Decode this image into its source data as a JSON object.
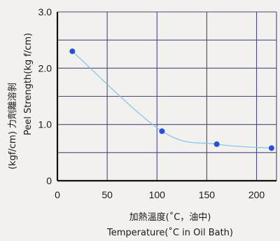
{
  "chart_data": {
    "type": "scatter",
    "xlabel": "加熱溫度(˚C，油中)",
    "xlabel_en": "Temperature(˚C in Oil Bath)",
    "ylabel": "(kgf/cm) 力劑離溶剝",
    "ylabel_en": "Peel Strength(kg f/cm)",
    "xlim": [
      0,
      220
    ],
    "ylim": [
      0,
      3.0
    ],
    "x_ticks": [
      "0",
      "50",
      "100",
      "150",
      "200"
    ],
    "y_ticks": [
      "0",
      "1.0",
      "2.0",
      "3.0"
    ],
    "grid": true,
    "series": [
      {
        "x": [
          15,
          105,
          160,
          215
        ],
        "y": [
          2.3,
          0.88,
          0.65,
          0.58
        ]
      }
    ],
    "trend_line": true,
    "colors": {
      "point": "#2a4fd6",
      "curve": "#7fc3ea",
      "grid": "#4a4880"
    }
  }
}
